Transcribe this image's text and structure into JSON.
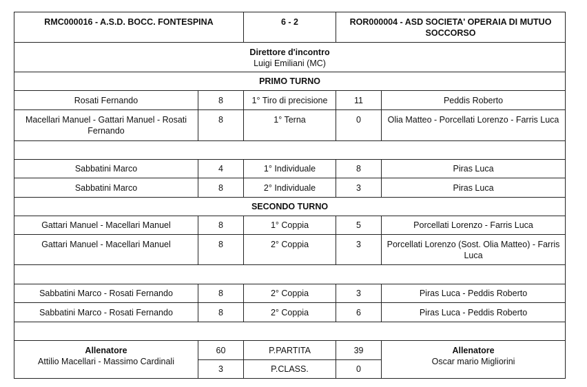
{
  "header": {
    "home_team": "RMC000016 - A.S.D. BOCC. FONTESPINA",
    "score": "6 - 2",
    "away_team": "ROR000004 - ASD SOCIETA' OPERAIA DI MUTUO SOCCORSO"
  },
  "director": {
    "label": "Direttore d'incontro",
    "name": "Luigi Emiliani (MC)"
  },
  "primo_turno": {
    "title": "PRIMO TURNO",
    "rows": [
      {
        "home": "Rosati Fernando",
        "home_score": "8",
        "game": "1° Tiro di precisione",
        "away_score": "11",
        "away": "Peddis Roberto"
      },
      {
        "home": "Macellari Manuel - Gattari Manuel - Rosati Fernando",
        "home_score": "8",
        "game": "1° Terna",
        "away_score": "0",
        "away": "Olia Matteo - Porcellati Lorenzo - Farris Luca"
      },
      {
        "home": "Sabbatini Marco",
        "home_score": "4",
        "game": "1° Individuale",
        "away_score": "8",
        "away": "Piras Luca"
      },
      {
        "home": "Sabbatini Marco",
        "home_score": "8",
        "game": "2° Individuale",
        "away_score": "3",
        "away": "Piras Luca"
      }
    ]
  },
  "secondo_turno": {
    "title": "SECONDO TURNO",
    "rows": [
      {
        "home": "Gattari Manuel - Macellari Manuel",
        "home_score": "8",
        "game": "1° Coppia",
        "away_score": "5",
        "away": "Porcellati Lorenzo - Farris Luca"
      },
      {
        "home": "Gattari Manuel - Macellari Manuel",
        "home_score": "8",
        "game": "2° Coppia",
        "away_score": "3",
        "away": "Porcellati Lorenzo (Sost. Olia Matteo) - Farris Luca"
      },
      {
        "home": "Sabbatini Marco - Rosati Fernando",
        "home_score": "8",
        "game": "2° Coppia",
        "away_score": "3",
        "away": "Piras Luca - Peddis Roberto"
      },
      {
        "home": "Sabbatini Marco - Rosati Fernando",
        "home_score": "8",
        "game": "2° Coppia",
        "away_score": "6",
        "away": "Piras Luca - Peddis Roberto"
      }
    ]
  },
  "footer": {
    "home_coach_label": "Allenatore",
    "home_coach": "Attilio Macellari - Massimo Cardinali",
    "away_coach_label": "Allenatore",
    "away_coach": "Oscar mario Migliorini",
    "p_partita_label": "P.PARTITA",
    "home_p_partita": "60",
    "away_p_partita": "39",
    "p_class_label": "P.CLASS.",
    "home_p_class": "3",
    "away_p_class": "0"
  }
}
